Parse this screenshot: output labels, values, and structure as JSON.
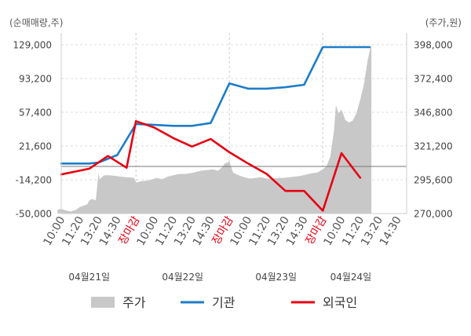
{
  "chart_data": {
    "type": "line",
    "left_axis_unit": "(순매매량,주)",
    "right_axis_unit": "(주가,원)",
    "left_axis": {
      "ticks": [
        "129,000",
        "93,200",
        "57,400",
        "21,600",
        "-14,200",
        "-50,000"
      ],
      "ylim": [
        -50000,
        129000
      ]
    },
    "right_axis": {
      "ticks": [
        "398,000",
        "372,400",
        "346,800",
        "321,200",
        "295,600",
        "270,000"
      ],
      "ylim": [
        270000,
        398000
      ]
    },
    "x_ticks": [
      {
        "label": "10:00",
        "close": false
      },
      {
        "label": "11:20",
        "close": false
      },
      {
        "label": "13:20",
        "close": false
      },
      {
        "label": "14:30",
        "close": false
      },
      {
        "label": "장마감",
        "close": true
      },
      {
        "label": "10:00",
        "close": false
      },
      {
        "label": "11:20",
        "close": false
      },
      {
        "label": "13:20",
        "close": false
      },
      {
        "label": "14:30",
        "close": false
      },
      {
        "label": "장마감",
        "close": true
      },
      {
        "label": "10:00",
        "close": false
      },
      {
        "label": "11:20",
        "close": false
      },
      {
        "label": "13:20",
        "close": false
      },
      {
        "label": "14:30",
        "close": false
      },
      {
        "label": "장마감",
        "close": true
      },
      {
        "label": "10:00",
        "close": false
      },
      {
        "label": "11:20",
        "close": false
      },
      {
        "label": "13:20",
        "close": false
      },
      {
        "label": "14:30",
        "close": false
      }
    ],
    "dates": [
      {
        "label": "04월21일",
        "tick_index": 1.5
      },
      {
        "label": "04월22일",
        "tick_index": 6.5
      },
      {
        "label": "04월23일",
        "tick_index": 11.5
      },
      {
        "label": "04월24일",
        "tick_index": 15.5
      }
    ],
    "day_separators": [
      4,
      9,
      14
    ],
    "series": [
      {
        "name": "주가",
        "kind": "area",
        "axis": "right",
        "color": "#c8c8c8",
        "points": [
          [
            -0.2,
            272800
          ],
          [
            0,
            273500
          ],
          [
            0.2,
            272500
          ],
          [
            0.5,
            271500
          ],
          [
            0.8,
            272800
          ],
          [
            1.0,
            275000
          ],
          [
            1.2,
            276000
          ],
          [
            1.4,
            277000
          ],
          [
            1.5,
            280000
          ],
          [
            1.65,
            281000
          ],
          [
            1.85,
            280000
          ],
          [
            2.0,
            301000
          ],
          [
            2.05,
            296000
          ],
          [
            2.3,
            299000
          ],
          [
            2.6,
            299000
          ],
          [
            2.9,
            298500
          ],
          [
            3.2,
            298000
          ],
          [
            3.5,
            297500
          ],
          [
            3.9,
            297000
          ],
          [
            4.0,
            293500
          ],
          [
            4.3,
            294500
          ],
          [
            4.6,
            295000
          ],
          [
            4.9,
            296000
          ],
          [
            5.1,
            297000
          ],
          [
            5.4,
            296000
          ],
          [
            5.7,
            298000
          ],
          [
            6.0,
            299000
          ],
          [
            6.3,
            300000
          ],
          [
            6.6,
            300000
          ],
          [
            6.9,
            300500
          ],
          [
            7.2,
            301500
          ],
          [
            7.5,
            302500
          ],
          [
            7.8,
            303000
          ],
          [
            8.1,
            303500
          ],
          [
            8.4,
            302500
          ],
          [
            8.6,
            305000
          ],
          [
            8.75,
            308000
          ],
          [
            9.0,
            309500
          ],
          [
            9.2,
            301000
          ],
          [
            9.5,
            299000
          ],
          [
            9.8,
            297500
          ],
          [
            10.1,
            296500
          ],
          [
            10.4,
            297000
          ],
          [
            10.7,
            297500
          ],
          [
            11.0,
            296500
          ],
          [
            11.3,
            296500
          ],
          [
            11.6,
            297000
          ],
          [
            11.9,
            297000
          ],
          [
            12.2,
            297500
          ],
          [
            12.5,
            298000
          ],
          [
            12.8,
            298500
          ],
          [
            13.1,
            299500
          ],
          [
            13.4,
            300500
          ],
          [
            13.7,
            301000
          ],
          [
            14.0,
            303500
          ],
          [
            14.2,
            306000
          ],
          [
            14.4,
            313000
          ],
          [
            14.6,
            333000
          ],
          [
            14.7,
            352000
          ],
          [
            14.85,
            346000
          ],
          [
            15.0,
            349000
          ],
          [
            15.2,
            341000
          ],
          [
            15.4,
            339000
          ],
          [
            15.6,
            340500
          ],
          [
            15.8,
            346000
          ],
          [
            16.0,
            356000
          ],
          [
            16.2,
            368000
          ],
          [
            16.4,
            386000
          ],
          [
            16.55,
            396000
          ],
          [
            16.6,
            398000
          ]
        ],
        "end_x": 16.6
      },
      {
        "name": "기관",
        "kind": "line",
        "axis": "left",
        "color": "#1e7dc8",
        "points": [
          [
            0,
            3000
          ],
          [
            1.5,
            3000
          ],
          [
            2.0,
            4000
          ],
          [
            3.0,
            12000
          ],
          [
            4.0,
            45000
          ],
          [
            5.0,
            44000
          ],
          [
            6.0,
            43000
          ],
          [
            7.0,
            43000
          ],
          [
            8.0,
            46000
          ],
          [
            9.0,
            88000
          ],
          [
            10.0,
            82500
          ],
          [
            11.0,
            82500
          ],
          [
            12.0,
            84000
          ],
          [
            13.0,
            86500
          ],
          [
            14.0,
            126500
          ],
          [
            15.0,
            126500
          ],
          [
            16.0,
            126500
          ],
          [
            16.5,
            126500
          ]
        ]
      },
      {
        "name": "외국인",
        "kind": "line",
        "axis": "left",
        "color": "#e60012",
        "points": [
          [
            0,
            -8500
          ],
          [
            1.5,
            -2500
          ],
          [
            2.5,
            11000
          ],
          [
            3.5,
            -1500
          ],
          [
            4.0,
            48000
          ],
          [
            5.0,
            41000
          ],
          [
            6.0,
            30000
          ],
          [
            7.0,
            21000
          ],
          [
            8.0,
            29000
          ],
          [
            9.0,
            15000
          ],
          [
            10.0,
            3000
          ],
          [
            11.0,
            -8000
          ],
          [
            12.0,
            -26000
          ],
          [
            13.0,
            -26000
          ],
          [
            14.0,
            -47000
          ],
          [
            15.0,
            14000
          ],
          [
            16.0,
            -12000
          ]
        ]
      }
    ],
    "legend_position": "bottom"
  }
}
